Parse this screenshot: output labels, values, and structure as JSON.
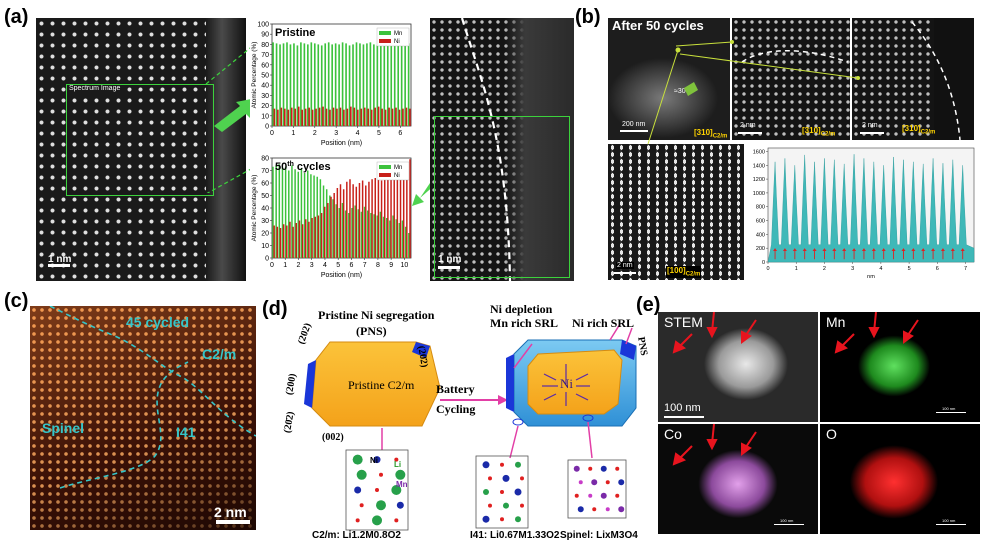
{
  "panels": {
    "a": "(a)",
    "b": "(b)",
    "c": "(c)",
    "d": "(d)",
    "e": "(e)"
  },
  "panel_a": {
    "spectrum_label": "Spectrum Image",
    "scale_left": "1 nm",
    "scale_right": "1 nm",
    "chart_top": {
      "title": "Pristine",
      "legend_mn": "Mn",
      "legend_ni": "Ni",
      "ylabel": "Atomic Percentage (%)",
      "xlabel": "Position (nm)",
      "yticks": [
        "0",
        "10",
        "20",
        "30",
        "40",
        "50",
        "60",
        "70",
        "80",
        "90",
        "100"
      ],
      "xticks": [
        "0",
        "1",
        "2",
        "3",
        "4",
        "5",
        "6"
      ]
    },
    "chart_bottom": {
      "title_main": "50",
      "title_sup": "th",
      "title_rest": " cycles",
      "legend_mn": "Mn",
      "legend_ni": "Ni",
      "ylabel": "Atomic Percentage (%)",
      "xlabel": "Position (nm)",
      "yticks": [
        "0",
        "10",
        "20",
        "30",
        "40",
        "50",
        "60",
        "70",
        "80"
      ],
      "xticks": [
        "0",
        "1",
        "2",
        "3",
        "4",
        "5",
        "6",
        "7",
        "8",
        "9",
        "10"
      ]
    }
  },
  "panel_b": {
    "title": "After 50 cycles",
    "scale_1": "200 nm",
    "scale_2": "2 nm",
    "scale_3": "2 nm",
    "scale_4": "2 nm",
    "angle": "≈30°",
    "zone_main": "[310]",
    "zone_sub": "C2/m",
    "zone_bottom_main": "[100]",
    "zone_bottom_sub": "C2/m",
    "profile": {
      "yticks": [
        "0",
        "200",
        "400",
        "600",
        "800",
        "1000",
        "1200",
        "1400",
        "1600"
      ],
      "xticks": [
        "0",
        "1",
        "2",
        "3",
        "4",
        "5",
        "6",
        "7"
      ],
      "xlabel": "nm"
    }
  },
  "panel_c": {
    "cycled": "45 cycled",
    "c2m": "C2/m",
    "spinel": "Spinel",
    "i41": "I41",
    "scale": "2 nm"
  },
  "panel_d": {
    "pns_title": "Pristine Ni segregation",
    "pns_abbr": "(PNS)",
    "facet_202": "(202)",
    "facet_200": "(200)",
    "facet_202bar": "(20̄2)",
    "facet_202bar_left": "(20̄2)",
    "facet_002": "(002)",
    "pristine_label": "Pristine  C2/m",
    "arrow_label_1": "Battery",
    "arrow_label_2": "Cycling",
    "ni_depletion_1": "Ni depletion",
    "ni_depletion_2": "Mn rich SRL",
    "ni_rich": "Ni rich SRL",
    "pns_right": "PNS",
    "ni_core": "Ni",
    "atom_ni": "Ni",
    "atom_li": "Li",
    "atom_mn": "Mn",
    "struct_1": "C2/m: Li1.2M0.8O2",
    "struct_2": "I41: Li0.67M1.33O2",
    "struct_3": "Spinel: LixM3O4"
  },
  "panel_e": {
    "stem": "STEM",
    "mn": "Mn",
    "co": "Co",
    "o": "O",
    "scale": "100 nm",
    "scale_small": "100 nm"
  },
  "chart_data": [
    {
      "type": "bar",
      "title": "Pristine",
      "xlabel": "Position (nm)",
      "ylabel": "Atomic Percentage (%)",
      "ylim": [
        0,
        100
      ],
      "xlim": [
        0,
        6.5
      ],
      "series": [
        {
          "name": "Mn",
          "color": "#3cc23c",
          "values": [
            82,
            81,
            80,
            81,
            82,
            80,
            81,
            79,
            82,
            81,
            80,
            82,
            81,
            80,
            79,
            81,
            82,
            80,
            81,
            80,
            82,
            81,
            79,
            80,
            82,
            81,
            80,
            81,
            82,
            80,
            79,
            81,
            82,
            80,
            81,
            80,
            82,
            81,
            80,
            81
          ]
        },
        {
          "name": "Ni",
          "color": "#c8201a",
          "values": [
            17,
            16,
            18,
            17,
            16,
            18,
            17,
            19,
            16,
            17,
            18,
            16,
            17,
            18,
            19,
            17,
            16,
            18,
            17,
            18,
            16,
            17,
            19,
            18,
            16,
            17,
            18,
            17,
            16,
            18,
            19,
            17,
            16,
            18,
            17,
            18,
            16,
            17,
            18,
            17
          ]
        }
      ]
    },
    {
      "type": "bar",
      "title": "50th cycles",
      "xlabel": "Position (nm)",
      "ylabel": "Atomic Percentage (%)",
      "ylim": [
        0,
        80
      ],
      "xlim": [
        0,
        10.5
      ],
      "series": [
        {
          "name": "Mn",
          "color": "#3cc23c",
          "values": [
            73,
            74,
            75,
            72,
            73,
            70,
            74,
            71,
            69,
            72,
            68,
            70,
            67,
            66,
            65,
            63,
            58,
            55,
            50,
            47,
            43,
            40,
            44,
            38,
            36,
            40,
            42,
            39,
            37,
            41,
            38,
            36,
            35,
            34,
            37,
            33,
            32,
            30,
            34,
            31,
            28,
            30,
            25,
            20
          ]
        },
        {
          "name": "Ni",
          "color": "#c8201a",
          "values": [
            26,
            25,
            24,
            27,
            26,
            29,
            25,
            28,
            30,
            27,
            31,
            29,
            32,
            33,
            34,
            36,
            41,
            44,
            49,
            52,
            56,
            59,
            55,
            61,
            63,
            59,
            57,
            60,
            62,
            58,
            61,
            63,
            64,
            65,
            62,
            66,
            67,
            69,
            65,
            68,
            71,
            69,
            74,
            79
          ]
        }
      ]
    },
    {
      "type": "area",
      "title": "",
      "xlabel": "nm",
      "ylabel": "",
      "ylim": [
        0,
        1650
      ],
      "xlim": [
        0,
        7.3
      ],
      "peaks_x": [
        0.25,
        0.6,
        0.95,
        1.3,
        1.65,
        2.0,
        2.35,
        2.7,
        3.05,
        3.4,
        3.75,
        4.1,
        4.45,
        4.8,
        5.15,
        5.5,
        5.85,
        6.2,
        6.55,
        6.9
      ],
      "peaks_y": [
        1450,
        1500,
        1400,
        1550,
        1450,
        1500,
        1480,
        1420,
        1560,
        1500,
        1450,
        1400,
        1520,
        1480,
        1450,
        1420,
        1500,
        1430,
        1480,
        1400
      ]
    }
  ]
}
